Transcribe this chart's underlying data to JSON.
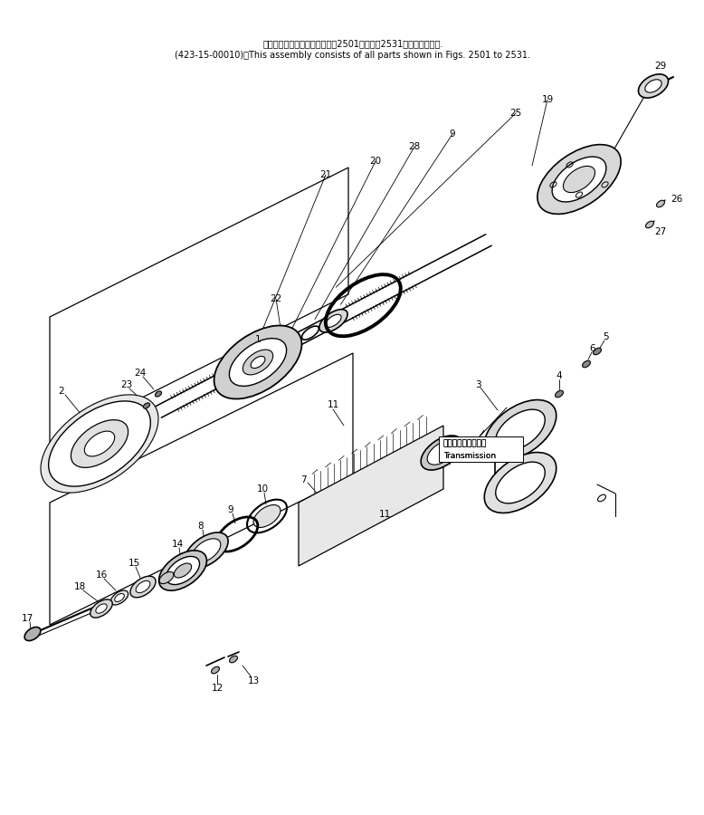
{
  "title_jp": "このアセンブリの構成部品は第2501図から第2531図まで含みます.",
  "title_en": "(423-15-00010)：This assembly consists of all parts shown in Figs. 2501 to 2531.",
  "bg_color": "#ffffff",
  "line_color": "#000000",
  "transmission_label_jp": "トランスミッション",
  "transmission_label_en": "Transmission",
  "figsize": [
    7.78,
    9.0
  ],
  "dpi": 100
}
